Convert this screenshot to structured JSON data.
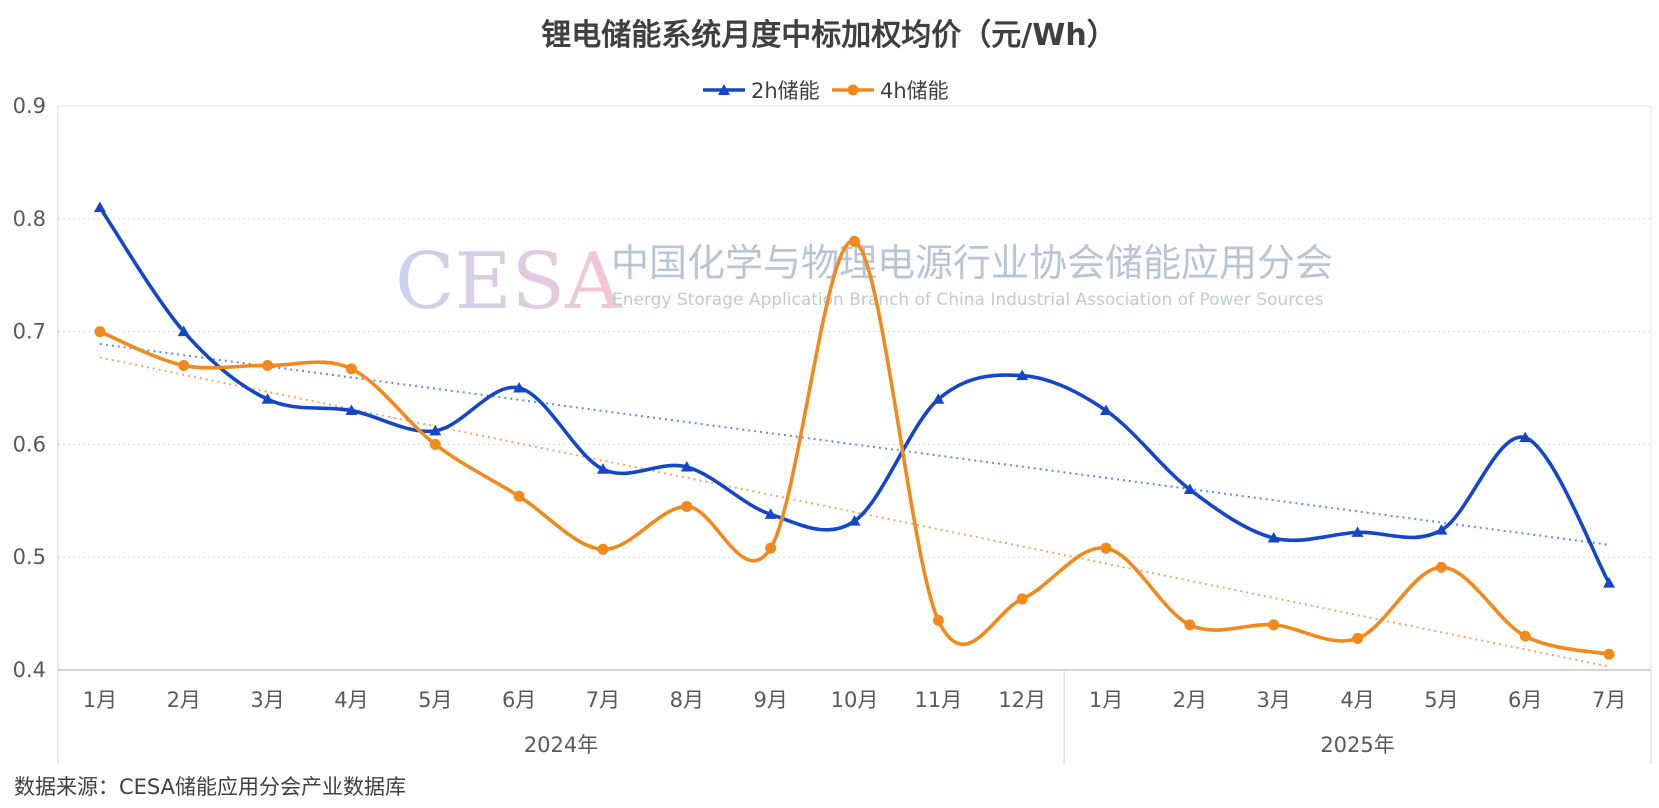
{
  "chart_data": {
    "type": "line",
    "title": "锂电储能系统月度中标加权均价（元/Wh）",
    "categories": [
      "1月",
      "2月",
      "3月",
      "4月",
      "5月",
      "6月",
      "7月",
      "8月",
      "9月",
      "10月",
      "11月",
      "12月",
      "1月",
      "2月",
      "3月",
      "4月",
      "5月",
      "6月",
      "7月"
    ],
    "year_groups": [
      {
        "label": "2024年",
        "start": 0,
        "end": 11
      },
      {
        "label": "2025年",
        "start": 12,
        "end": 18
      }
    ],
    "series": [
      {
        "name": "2h储能",
        "color": "#1446c8",
        "marker": "triangle",
        "values": [
          0.81,
          0.7,
          0.64,
          0.63,
          0.612,
          0.65,
          0.578,
          0.58,
          0.538,
          0.532,
          0.64,
          0.661,
          0.63,
          0.56,
          0.517,
          0.522,
          0.524,
          0.606,
          0.477
        ]
      },
      {
        "name": "4h储能",
        "color": "#f08a1c",
        "marker": "circle",
        "values": [
          0.7,
          0.67,
          0.67,
          0.667,
          0.6,
          0.554,
          0.507,
          0.545,
          0.508,
          0.78,
          0.444,
          0.463,
          0.508,
          0.44,
          0.44,
          0.428,
          0.491,
          0.43,
          0.414
        ]
      }
    ],
    "trendlines": [
      {
        "series": "2h储能",
        "color": "#5b8ee0",
        "start": 0.689,
        "end": 0.511
      },
      {
        "series": "4h储能",
        "color": "#f5a55a",
        "start": 0.677,
        "end": 0.403
      }
    ],
    "yticks": [
      "0.4",
      "0.5",
      "0.6",
      "0.7",
      "0.8",
      "0.9"
    ],
    "ylim": [
      0.4,
      0.9
    ],
    "grid": true,
    "legend_position": "top-center"
  },
  "watermark": {
    "logo": "CESA",
    "cn": "中国化学与物理电源行业协会储能应用分会",
    "en": "Energy Storage Application Branch of China Industrial Association of Power Sources"
  },
  "source_note": "数据来源：CESA储能应用分会产业数据库"
}
